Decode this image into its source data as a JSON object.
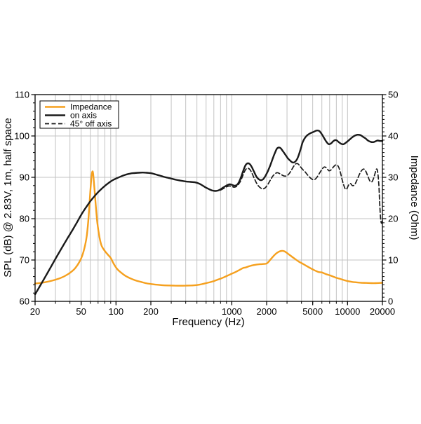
{
  "chart_data": {
    "type": "line",
    "title": "",
    "xlabel": "Frequency (Hz)",
    "ylabel_left": "SPL (dB) @ 2.83V, 1m, half space",
    "ylabel_right": "Impedance (Ohm)",
    "x_scale": "log",
    "xlim": [
      20,
      20000
    ],
    "ylim_left": [
      60,
      110
    ],
    "ylim_right": [
      0,
      50
    ],
    "grid": "on",
    "x_gridlines": [
      30,
      40,
      50,
      60,
      70,
      80,
      90,
      100,
      200,
      300,
      400,
      500,
      600,
      700,
      800,
      900,
      1000,
      2000,
      3000,
      4000,
      5000,
      6000,
      7000,
      8000,
      9000,
      10000,
      20000
    ],
    "x_tick_labels": [
      {
        "f": 20,
        "label": "20"
      },
      {
        "f": 50,
        "label": "50"
      },
      {
        "f": 100,
        "label": "100"
      },
      {
        "f": 200,
        "label": "200"
      },
      {
        "f": 1000,
        "label": "1000"
      },
      {
        "f": 2000,
        "label": "2000"
      },
      {
        "f": 5000,
        "label": "5000"
      },
      {
        "f": 10000,
        "label": "10000"
      },
      {
        "f": 20000,
        "label": "20000"
      }
    ],
    "y_left_tick_labels": [
      "60",
      "70",
      "80",
      "90",
      "100",
      "110"
    ],
    "y_left_minor_step": 2,
    "y_right_tick_labels": [
      "0",
      "10",
      "20",
      "30",
      "40",
      "50"
    ],
    "y_right_minor_step": 1,
    "legend": {
      "position": "top-left",
      "items": [
        {
          "label": "Impedance",
          "style": "solid",
          "color": "#F5A01E"
        },
        {
          "label": "on axis",
          "style": "solid",
          "color": "#1a1a1a"
        },
        {
          "label": "45° off axis",
          "style": "dashed",
          "color": "#1a1a1a"
        }
      ]
    },
    "colors": {
      "impedance": "#F5A01E",
      "on_axis": "#1a1a1a",
      "off_axis": "#1a1a1a",
      "gridline": "#c3c3c3",
      "axis": "#000000",
      "background": "#ffffff"
    },
    "series": [
      {
        "name": "Impedance",
        "axis": "right",
        "unit": "Ohm",
        "style": "solid",
        "color": "#F5A01E",
        "points": [
          [
            20,
            4.3
          ],
          [
            24,
            4.6
          ],
          [
            28,
            5.0
          ],
          [
            32,
            5.5
          ],
          [
            36,
            6.1
          ],
          [
            40,
            6.9
          ],
          [
            44,
            7.9
          ],
          [
            48,
            9.4
          ],
          [
            51,
            11.0
          ],
          [
            54,
            13.5
          ],
          [
            56,
            16.0
          ],
          [
            58,
            20.5
          ],
          [
            60,
            26.5
          ],
          [
            61.5,
            30.3
          ],
          [
            62.5,
            31.4
          ],
          [
            63.5,
            30.8
          ],
          [
            65,
            27.5
          ],
          [
            67,
            23.0
          ],
          [
            69,
            19.0
          ],
          [
            72,
            15.5
          ],
          [
            75,
            13.5
          ],
          [
            80,
            12.2
          ],
          [
            85,
            11.3
          ],
          [
            90,
            10.5
          ],
          [
            95,
            9.2
          ],
          [
            100,
            8.2
          ],
          [
            105,
            7.5
          ],
          [
            110,
            7.0
          ],
          [
            120,
            6.2
          ],
          [
            130,
            5.7
          ],
          [
            140,
            5.3
          ],
          [
            150,
            5.0
          ],
          [
            165,
            4.7
          ],
          [
            180,
            4.4
          ],
          [
            200,
            4.2
          ],
          [
            220,
            4.05
          ],
          [
            250,
            3.92
          ],
          [
            280,
            3.85
          ],
          [
            320,
            3.8
          ],
          [
            360,
            3.78
          ],
          [
            400,
            3.8
          ],
          [
            450,
            3.85
          ],
          [
            500,
            3.95
          ],
          [
            550,
            4.15
          ],
          [
            600,
            4.4
          ],
          [
            650,
            4.65
          ],
          [
            700,
            4.9
          ],
          [
            750,
            5.2
          ],
          [
            800,
            5.5
          ],
          [
            850,
            5.8
          ],
          [
            900,
            6.1
          ],
          [
            950,
            6.4
          ],
          [
            1000,
            6.7
          ],
          [
            1060,
            7.0
          ],
          [
            1130,
            7.4
          ],
          [
            1200,
            7.8
          ],
          [
            1260,
            8.1
          ],
          [
            1320,
            8.2
          ],
          [
            1400,
            8.45
          ],
          [
            1500,
            8.7
          ],
          [
            1600,
            8.85
          ],
          [
            1700,
            8.95
          ],
          [
            1800,
            9.0
          ],
          [
            1900,
            9.05
          ],
          [
            2000,
            9.15
          ],
          [
            2100,
            9.7
          ],
          [
            2250,
            10.7
          ],
          [
            2400,
            11.5
          ],
          [
            2550,
            12.0
          ],
          [
            2700,
            12.2
          ],
          [
            2850,
            12.1
          ],
          [
            3000,
            11.7
          ],
          [
            3200,
            11.1
          ],
          [
            3500,
            10.3
          ],
          [
            3800,
            9.6
          ],
          [
            4100,
            9.1
          ],
          [
            4400,
            8.6
          ],
          [
            4800,
            8.0
          ],
          [
            5200,
            7.5
          ],
          [
            5600,
            7.1
          ],
          [
            6000,
            7.0
          ],
          [
            6500,
            6.6
          ],
          [
            7000,
            6.3
          ],
          [
            7500,
            6.0
          ],
          [
            8000,
            5.7
          ],
          [
            8700,
            5.4
          ],
          [
            9400,
            5.1
          ],
          [
            10000,
            4.9
          ],
          [
            11000,
            4.7
          ],
          [
            12000,
            4.6
          ],
          [
            13000,
            4.5
          ],
          [
            14500,
            4.45
          ],
          [
            16000,
            4.4
          ],
          [
            17500,
            4.4
          ],
          [
            19000,
            4.45
          ],
          [
            20000,
            4.5
          ]
        ]
      },
      {
        "name": "on axis",
        "axis": "left",
        "unit": "dB",
        "style": "solid",
        "color": "#1a1a1a",
        "points": [
          [
            20,
            61.7
          ],
          [
            23,
            64.6
          ],
          [
            26,
            67.2
          ],
          [
            30,
            70.3
          ],
          [
            34,
            72.9
          ],
          [
            38,
            75.2
          ],
          [
            42,
            77.2
          ],
          [
            46,
            79.1
          ],
          [
            50,
            80.9
          ],
          [
            55,
            82.7
          ],
          [
            60,
            84.2
          ],
          [
            65,
            85.4
          ],
          [
            70,
            86.4
          ],
          [
            75,
            87.2
          ],
          [
            80,
            87.9
          ],
          [
            85,
            88.5
          ],
          [
            90,
            89.0
          ],
          [
            95,
            89.4
          ],
          [
            100,
            89.7
          ],
          [
            110,
            90.2
          ],
          [
            120,
            90.6
          ],
          [
            130,
            90.85
          ],
          [
            140,
            91.0
          ],
          [
            155,
            91.1
          ],
          [
            170,
            91.15
          ],
          [
            185,
            91.1
          ],
          [
            200,
            91.0
          ],
          [
            220,
            90.7
          ],
          [
            240,
            90.4
          ],
          [
            260,
            90.1
          ],
          [
            280,
            89.9
          ],
          [
            300,
            89.7
          ],
          [
            330,
            89.4
          ],
          [
            360,
            89.2
          ],
          [
            400,
            89.0
          ],
          [
            440,
            88.9
          ],
          [
            480,
            88.8
          ],
          [
            520,
            88.5
          ],
          [
            560,
            88.0
          ],
          [
            600,
            87.5
          ],
          [
            640,
            87.1
          ],
          [
            680,
            86.8
          ],
          [
            720,
            86.7
          ],
          [
            760,
            86.8
          ],
          [
            800,
            87.1
          ],
          [
            850,
            87.6
          ],
          [
            900,
            88.0
          ],
          [
            950,
            88.3
          ],
          [
            1000,
            88.2
          ],
          [
            1040,
            88.0
          ],
          [
            1080,
            88.0
          ],
          [
            1120,
            88.3
          ],
          [
            1160,
            89.0
          ],
          [
            1200,
            90.0
          ],
          [
            1260,
            91.7
          ],
          [
            1320,
            93.0
          ],
          [
            1380,
            93.4
          ],
          [
            1440,
            93.1
          ],
          [
            1500,
            92.3
          ],
          [
            1560,
            91.3
          ],
          [
            1630,
            90.2
          ],
          [
            1700,
            89.6
          ],
          [
            1780,
            89.3
          ],
          [
            1860,
            89.5
          ],
          [
            1950,
            90.3
          ],
          [
            2050,
            91.5
          ],
          [
            2150,
            92.9
          ],
          [
            2250,
            94.4
          ],
          [
            2350,
            95.8
          ],
          [
            2450,
            96.9
          ],
          [
            2550,
            97.2
          ],
          [
            2650,
            97.0
          ],
          [
            2750,
            96.4
          ],
          [
            2900,
            95.5
          ],
          [
            3050,
            94.6
          ],
          [
            3200,
            94.0
          ],
          [
            3350,
            93.6
          ],
          [
            3500,
            93.7
          ],
          [
            3650,
            94.3
          ],
          [
            3800,
            95.5
          ],
          [
            3950,
            97.0
          ],
          [
            4100,
            98.5
          ],
          [
            4300,
            99.6
          ],
          [
            4500,
            100.2
          ],
          [
            4800,
            100.7
          ],
          [
            5100,
            101.0
          ],
          [
            5400,
            101.3
          ],
          [
            5700,
            101.2
          ],
          [
            6000,
            100.4
          ],
          [
            6300,
            99.4
          ],
          [
            6600,
            98.5
          ],
          [
            6900,
            98.0
          ],
          [
            7200,
            98.2
          ],
          [
            7500,
            98.7
          ],
          [
            7800,
            99.0
          ],
          [
            8100,
            98.9
          ],
          [
            8400,
            98.5
          ],
          [
            8800,
            98.1
          ],
          [
            9200,
            98.0
          ],
          [
            9600,
            98.3
          ],
          [
            10000,
            98.7
          ],
          [
            10500,
            99.2
          ],
          [
            11000,
            99.7
          ],
          [
            11600,
            100.1
          ],
          [
            12200,
            100.3
          ],
          [
            12900,
            100.2
          ],
          [
            13600,
            99.8
          ],
          [
            14300,
            99.4
          ],
          [
            15000,
            98.9
          ],
          [
            15800,
            98.6
          ],
          [
            16600,
            98.5
          ],
          [
            17400,
            98.7
          ],
          [
            18200,
            98.9
          ],
          [
            19000,
            98.8
          ],
          [
            20000,
            98.8
          ]
        ]
      },
      {
        "name": "45° off axis",
        "axis": "left",
        "unit": "dB",
        "style": "dashed",
        "color": "#1a1a1a",
        "points": [
          [
            800,
            86.9
          ],
          [
            850,
            87.3
          ],
          [
            900,
            87.7
          ],
          [
            950,
            87.9
          ],
          [
            1000,
            87.8
          ],
          [
            1050,
            87.6
          ],
          [
            1100,
            87.8
          ],
          [
            1150,
            88.4
          ],
          [
            1200,
            89.3
          ],
          [
            1260,
            90.8
          ],
          [
            1320,
            91.9
          ],
          [
            1380,
            92.2
          ],
          [
            1440,
            91.8
          ],
          [
            1500,
            90.9
          ],
          [
            1560,
            89.8
          ],
          [
            1630,
            88.7
          ],
          [
            1700,
            87.9
          ],
          [
            1780,
            87.4
          ],
          [
            1860,
            87.2
          ],
          [
            1950,
            87.5
          ],
          [
            2050,
            88.3
          ],
          [
            2150,
            89.3
          ],
          [
            2250,
            90.2
          ],
          [
            2350,
            90.8
          ],
          [
            2450,
            91.1
          ],
          [
            2550,
            91.0
          ],
          [
            2700,
            90.6
          ],
          [
            2850,
            90.3
          ],
          [
            3000,
            90.4
          ],
          [
            3150,
            91.0
          ],
          [
            3300,
            91.9
          ],
          [
            3450,
            92.8
          ],
          [
            3600,
            93.3
          ],
          [
            3750,
            93.2
          ],
          [
            3900,
            92.6
          ],
          [
            4100,
            91.9
          ],
          [
            4300,
            91.3
          ],
          [
            4600,
            90.3
          ],
          [
            4900,
            89.6
          ],
          [
            5150,
            89.4
          ],
          [
            5400,
            89.9
          ],
          [
            5700,
            90.9
          ],
          [
            6000,
            91.9
          ],
          [
            6300,
            92.5
          ],
          [
            6600,
            92.2
          ],
          [
            6900,
            91.6
          ],
          [
            7200,
            91.8
          ],
          [
            7500,
            92.4
          ],
          [
            7800,
            92.9
          ],
          [
            8100,
            93.0
          ],
          [
            8400,
            92.4
          ],
          [
            8700,
            91.0
          ],
          [
            9000,
            89.3
          ],
          [
            9300,
            88.0
          ],
          [
            9600,
            87.1
          ],
          [
            9900,
            87.3
          ],
          [
            10200,
            88.1
          ],
          [
            10600,
            88.5
          ],
          [
            11000,
            88.0
          ],
          [
            11500,
            88.2
          ],
          [
            12000,
            89.2
          ],
          [
            12600,
            90.6
          ],
          [
            13200,
            91.6
          ],
          [
            13800,
            92.0
          ],
          [
            14400,
            91.4
          ],
          [
            15000,
            90.2
          ],
          [
            15600,
            89.1
          ],
          [
            16200,
            88.9
          ],
          [
            16800,
            89.8
          ],
          [
            17300,
            91.0
          ],
          [
            17800,
            92.0
          ],
          [
            18200,
            91.3
          ],
          [
            18600,
            88.5
          ],
          [
            18900,
            84.5
          ],
          [
            19200,
            80.8
          ],
          [
            19500,
            79.1
          ],
          [
            19800,
            79.0
          ],
          [
            20000,
            79.6
          ]
        ]
      }
    ]
  }
}
